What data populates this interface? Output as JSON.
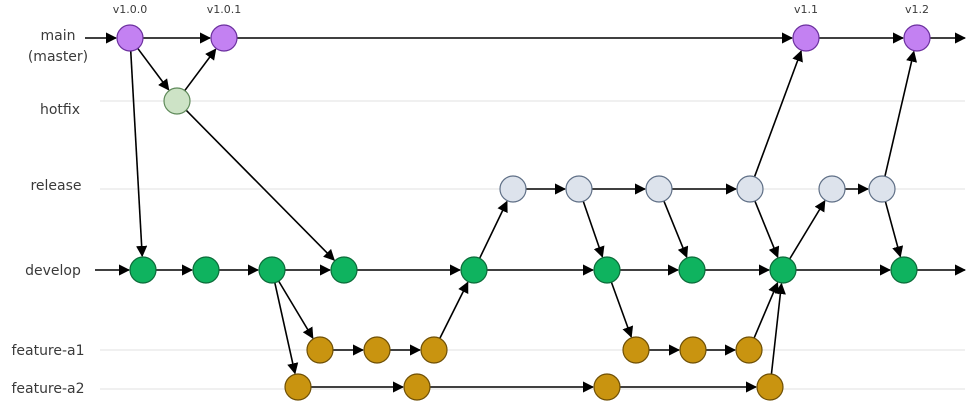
{
  "branches": [
    {
      "label": "main",
      "sublabel": "(master)"
    },
    {
      "label": "hotfix"
    },
    {
      "label": "release"
    },
    {
      "label": "develop"
    },
    {
      "label": "feature-a1"
    },
    {
      "label": "feature-a2"
    }
  ],
  "tags": [
    "v1.0.0",
    "v1.0.1",
    "v1.1",
    "v1.2"
  ]
}
